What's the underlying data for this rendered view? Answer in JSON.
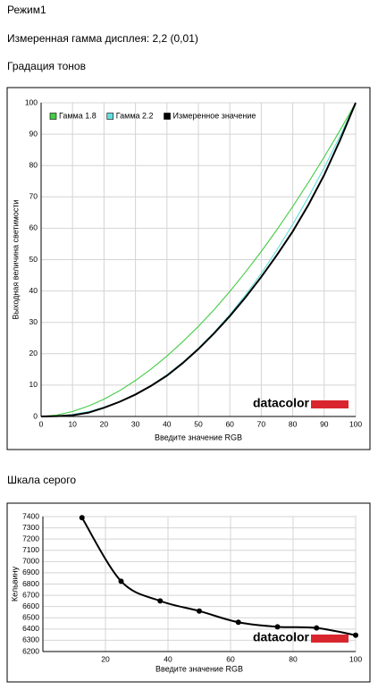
{
  "page": {
    "mode": "Режим1",
    "measured_gamma": "Измеренная гамма дисплея: 2,2 (0,01)"
  },
  "chart_data": [
    {
      "type": "line",
      "title": "Градация тонов",
      "xlabel": "Введите значение RGB",
      "ylabel": "Выходная величина светимости",
      "watermark": "datacolor",
      "smooth": false,
      "markers": false,
      "grid": true,
      "legend": "top-left",
      "x": [
        0,
        5,
        10,
        15,
        20,
        25,
        30,
        35,
        40,
        45,
        50,
        55,
        60,
        65,
        70,
        75,
        80,
        85,
        90,
        95,
        100
      ],
      "series": [
        {
          "name": "Гамма 1.8",
          "color": "#44cc44",
          "values": [
            0,
            0.46,
            1.58,
            3.3,
            5.52,
            8.25,
            11.46,
            15.14,
            19.25,
            23.81,
            28.72,
            34.06,
            39.86,
            46.07,
            52.6,
            59.58,
            66.93,
            74.65,
            82.73,
            91.19,
            100
          ]
        },
        {
          "name": "Гамма 2.2",
          "color": "#66dddd",
          "values": [
            0,
            0.14,
            0.63,
            1.54,
            2.91,
            4.76,
            7.07,
            9.93,
            13.3,
            17.25,
            21.76,
            26.82,
            32.5,
            38.77,
            45.6,
            53.13,
            61.23,
            69.96,
            79.3,
            89.35,
            100
          ]
        },
        {
          "name": "Измеренное значение",
          "color": "#000000",
          "values": [
            0,
            0.1,
            0.4,
            1.2,
            2.8,
            4.7,
            7,
            9.8,
            13,
            17,
            21.5,
            26.5,
            32,
            38,
            44.5,
            51.5,
            59,
            67.5,
            77,
            88,
            100
          ]
        }
      ],
      "xlim": [
        0,
        100
      ],
      "xticks": [
        0,
        10,
        20,
        30,
        40,
        50,
        60,
        70,
        80,
        90,
        100
      ],
      "ylim": [
        0,
        100
      ],
      "yticks": [
        0,
        10,
        20,
        30,
        40,
        50,
        60,
        70,
        80,
        90,
        100
      ]
    },
    {
      "type": "line",
      "title": "Шкала серого",
      "xlabel": "Введите значение RGB",
      "ylabel": "Кельвину",
      "watermark": "datacolor",
      "smooth": true,
      "markers": true,
      "grid": true,
      "x": [
        12.5,
        25,
        37.5,
        50,
        62.5,
        75,
        87.5,
        100
      ],
      "series": [
        {
          "color": "#000000",
          "values": [
            7390,
            6825,
            6650,
            6560,
            6460,
            6420,
            6410,
            6345
          ]
        }
      ],
      "xlim": [
        0,
        100
      ],
      "xticks": [
        20,
        40,
        60,
        80,
        100
      ],
      "ylim": [
        6200,
        7400
      ],
      "yticks": [
        6200,
        6300,
        6400,
        6500,
        6600,
        6700,
        6800,
        6900,
        7000,
        7100,
        7200,
        7300,
        7400
      ]
    }
  ]
}
